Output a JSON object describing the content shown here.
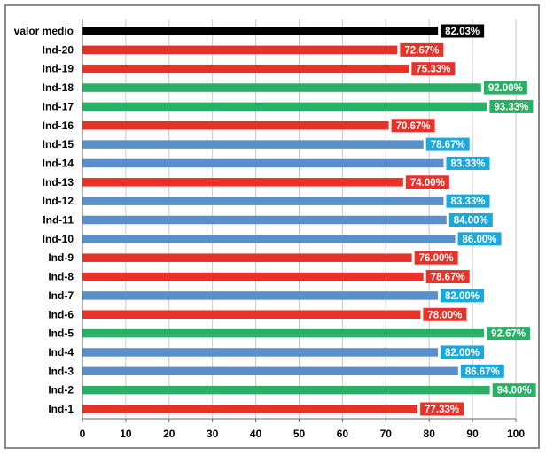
{
  "chart_data": {
    "type": "bar",
    "orientation": "horizontal",
    "title": "",
    "xlabel": "",
    "ylabel": "",
    "xlim": [
      0,
      100
    ],
    "x_ticks": [
      "0",
      "10",
      "20",
      "30",
      "40",
      "50",
      "60",
      "70",
      "80",
      "90",
      "100"
    ],
    "grid": "vertical",
    "legend": "none",
    "categories": [
      "valor medio",
      "Ind-20",
      "Ind-19",
      "Ind-18",
      "Ind-17",
      "Ind-16",
      "Ind-15",
      "Ind-14",
      "Ind-13",
      "Ind-12",
      "Ind-11",
      "Ind-10",
      "Ind-9",
      "Ind-8",
      "Ind-7",
      "Ind-6",
      "Ind-5",
      "Ind-4",
      "Ind-3",
      "Ind-2",
      "Ind-1"
    ],
    "values": [
      82.03,
      72.67,
      75.33,
      92.0,
      93.33,
      70.67,
      78.67,
      83.33,
      74.0,
      83.33,
      84.0,
      86.0,
      76.0,
      78.67,
      82.0,
      78.0,
      92.67,
      82.0,
      86.67,
      94.0,
      77.33
    ],
    "data_labels": [
      "82.03%",
      "72.67%",
      "75.33%",
      "92.00%",
      "93.33%",
      "70.67%",
      "78.67%",
      "83.33%",
      "74.00%",
      "83.33%",
      "84.00%",
      "86.00%",
      "76.00%",
      "78.67%",
      "82.00%",
      "78.00%",
      "92.67%",
      "82.00%",
      "86.67%",
      "94.00%",
      "77.33%"
    ],
    "bar_colors": [
      "#000000",
      "#e63228",
      "#e63228",
      "#28b065",
      "#28b065",
      "#e63228",
      "#5b8fcc",
      "#5b8fcc",
      "#e63228",
      "#5b8fcc",
      "#5b8fcc",
      "#5b8fcc",
      "#e63228",
      "#e63228",
      "#5b8fcc",
      "#e63228",
      "#28b065",
      "#5b8fcc",
      "#5b8fcc",
      "#28b065",
      "#e63228"
    ],
    "label_box_colors": [
      "#000000",
      "#e63228",
      "#e63228",
      "#28b065",
      "#28b065",
      "#e63228",
      "#1aa8dd",
      "#1aa8dd",
      "#e63228",
      "#1aa8dd",
      "#1aa8dd",
      "#1aa8dd",
      "#e63228",
      "#e63228",
      "#1aa8dd",
      "#e63228",
      "#28b065",
      "#1aa8dd",
      "#1aa8dd",
      "#28b065",
      "#e63228"
    ]
  }
}
